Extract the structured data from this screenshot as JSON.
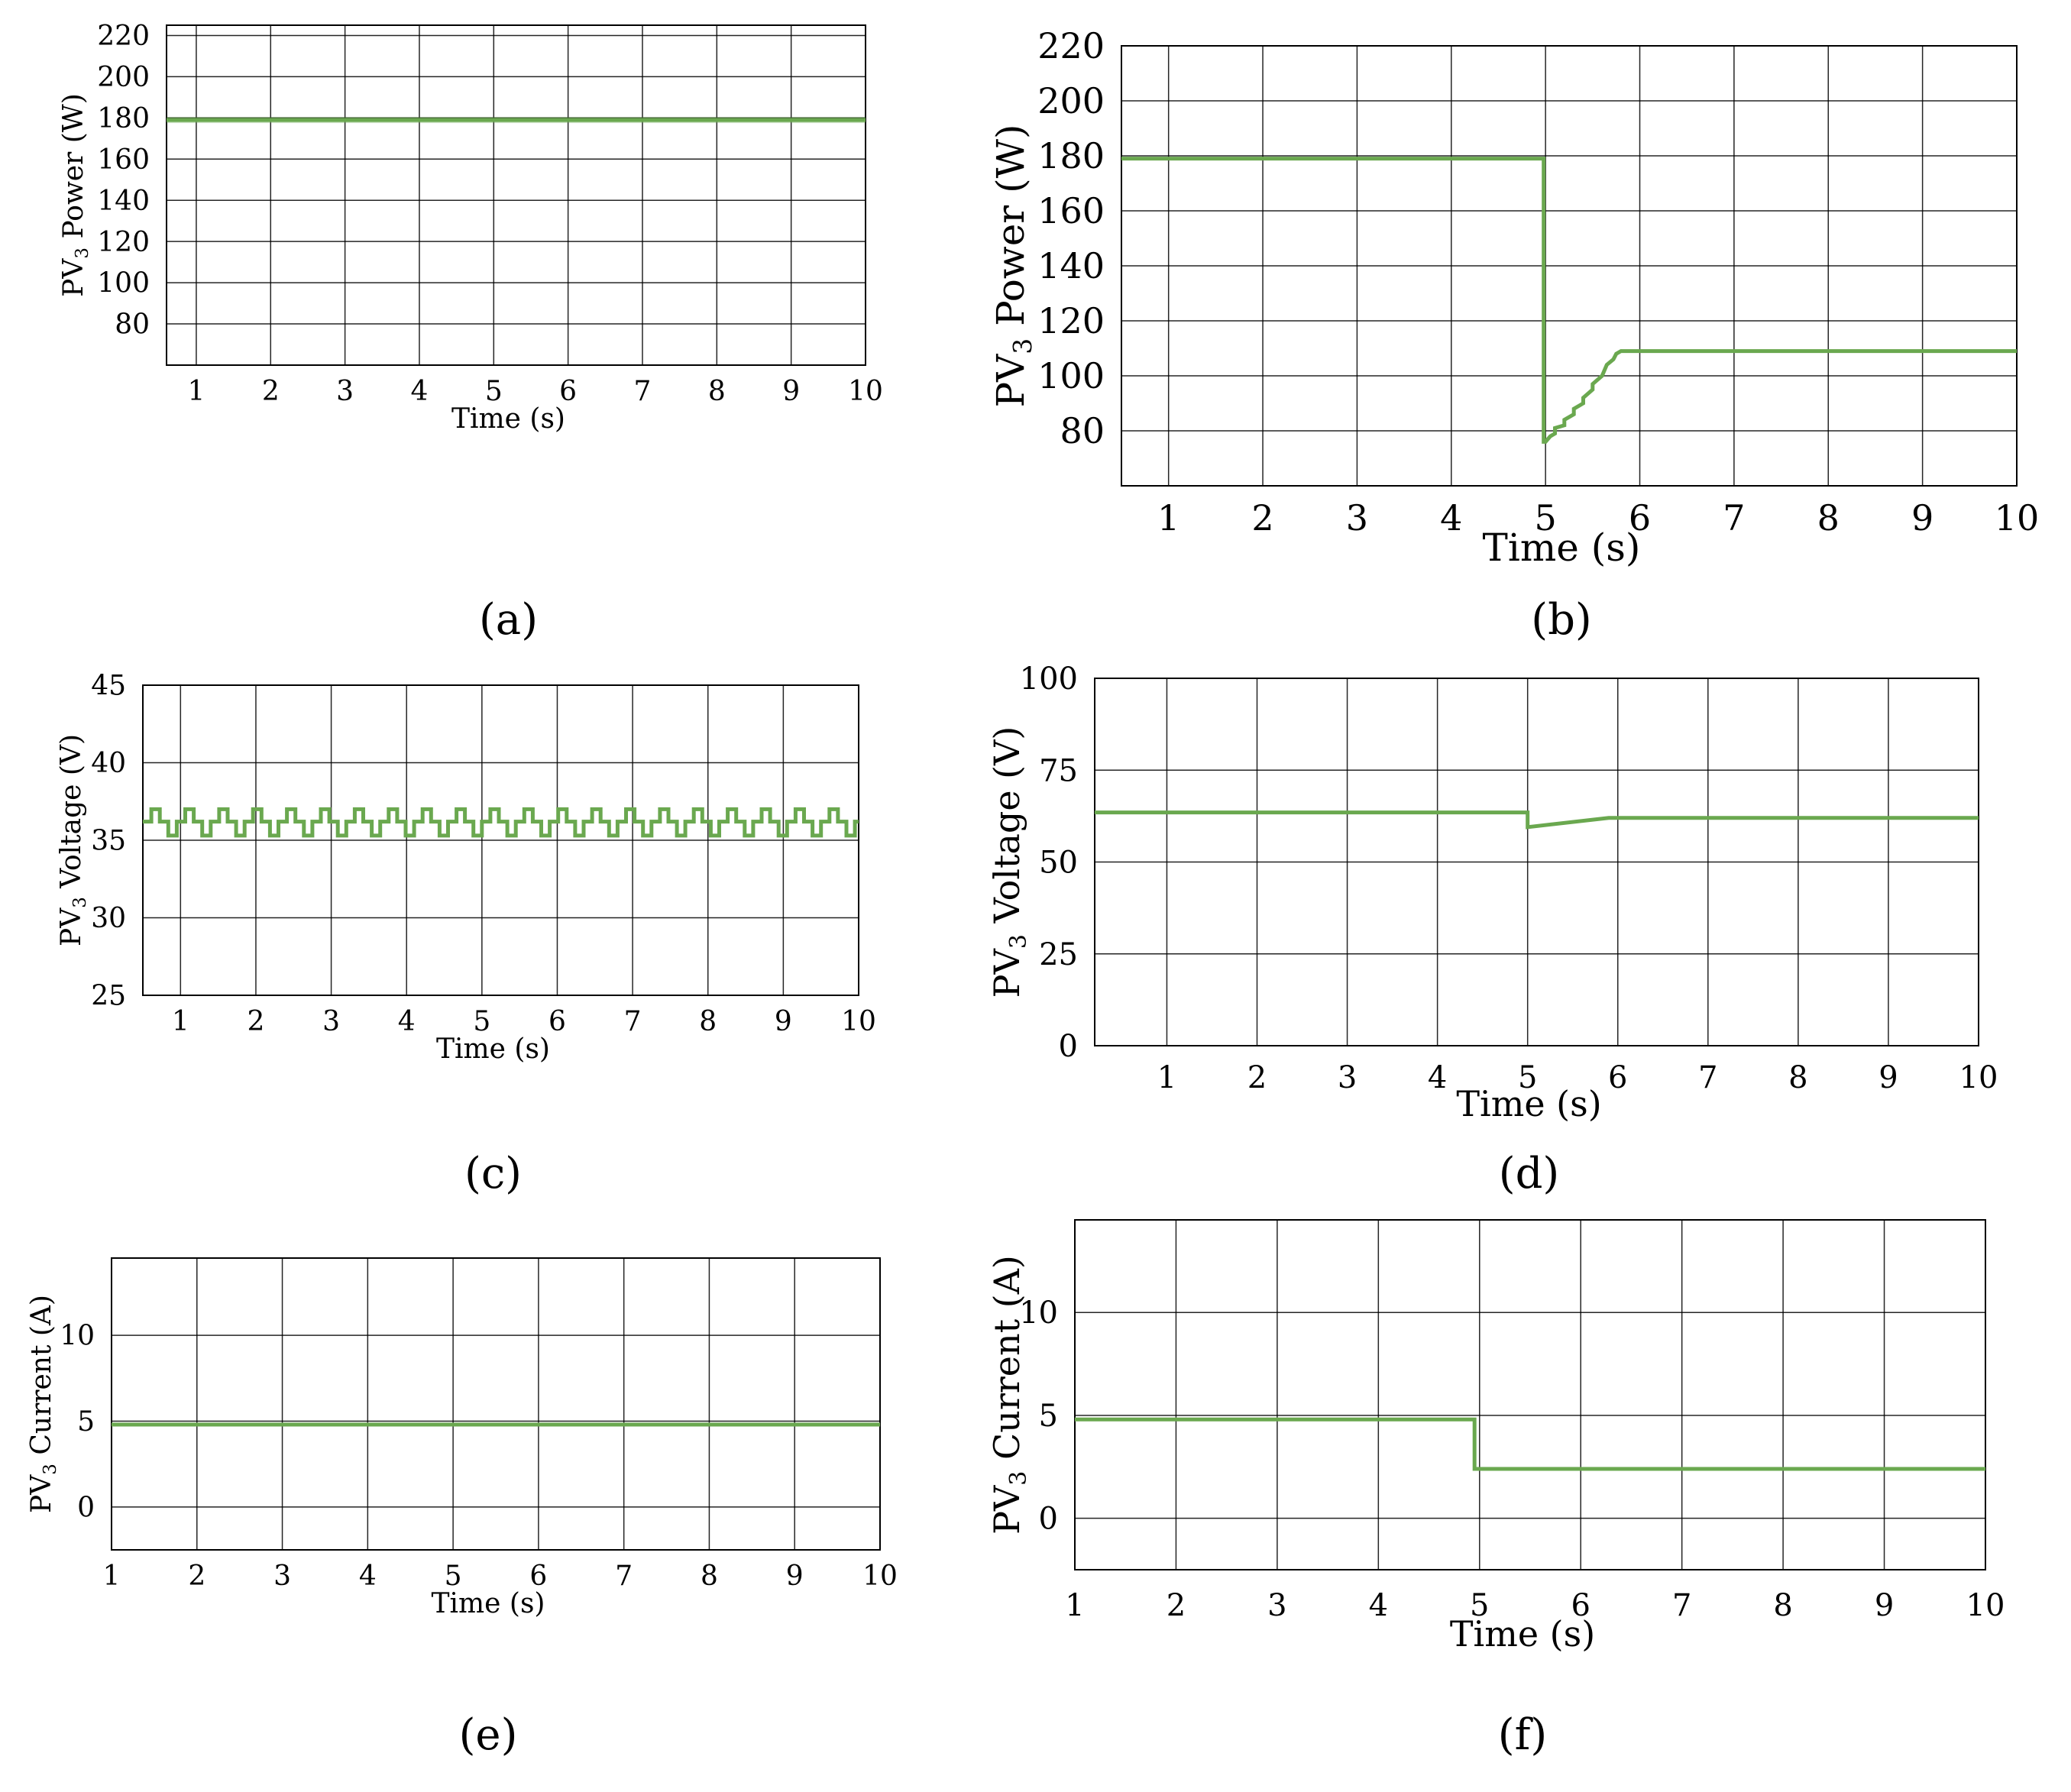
{
  "colors": {
    "series": "#6aa84f",
    "axis": "#000000",
    "grid": "#000000"
  },
  "chart_data": [
    {
      "type": "line",
      "panel_label": "(a)",
      "xlabel": "Time (s)",
      "ylabel": "PV3 Power (W)",
      "ylabel_main": "PV",
      "ylabel_sub": "3",
      "ylabel_rest": " Power (W)",
      "xlim": [
        0.6,
        10
      ],
      "ylim": [
        60,
        225
      ],
      "xticks": [
        1,
        2,
        3,
        4,
        5,
        6,
        7,
        8,
        9,
        10
      ],
      "yticks": [
        80,
        100,
        120,
        140,
        160,
        180,
        200,
        220
      ],
      "grid": true,
      "series": [
        {
          "x": [
            0.6,
            10
          ],
          "y": [
            179,
            179
          ],
          "band": [
            177.5,
            180.5
          ]
        }
      ]
    },
    {
      "type": "line",
      "panel_label": "(b)",
      "xlabel": "Time (s)",
      "ylabel": "PV3 Power (W)",
      "ylabel_main": "PV",
      "ylabel_sub": "3",
      "ylabel_rest": " Power (W)",
      "xlim": [
        0.5,
        10
      ],
      "ylim": [
        60,
        220
      ],
      "xticks": [
        1,
        2,
        3,
        4,
        5,
        6,
        7,
        8,
        9,
        10
      ],
      "yticks": [
        80,
        100,
        120,
        140,
        160,
        180,
        200,
        220
      ],
      "grid": true,
      "series": [
        {
          "x": [
            0.5,
            4.98,
            4.98,
            5.0,
            5.05,
            5.1,
            5.1,
            5.2,
            5.2,
            5.3,
            5.3,
            5.4,
            5.4,
            5.5,
            5.5,
            5.6,
            5.65,
            5.72,
            5.75,
            5.8,
            6.0,
            10
          ],
          "y": [
            179,
            179,
            76,
            76,
            78,
            79,
            81,
            82,
            84,
            86,
            88,
            90,
            92,
            95,
            97,
            100,
            104,
            106,
            108,
            109,
            109,
            109
          ]
        }
      ]
    },
    {
      "type": "line",
      "panel_label": "(c)",
      "xlabel": "Time (s)",
      "ylabel": "PV3 Voltage (V)",
      "ylabel_main": "PV",
      "ylabel_sub": "3",
      "ylabel_rest": " Voltage (V)",
      "xlim": [
        0.5,
        10
      ],
      "ylim": [
        25,
        45
      ],
      "xticks": [
        1,
        2,
        3,
        4,
        5,
        6,
        7,
        8,
        9,
        10
      ],
      "yticks": [
        25,
        30,
        35,
        40,
        45
      ],
      "grid": true,
      "series": [
        {
          "period": 0.45,
          "x_start": 0.5,
          "x_end": 10,
          "levels": [
            35.3,
            36.2,
            37.0
          ]
        }
      ]
    },
    {
      "type": "line",
      "panel_label": "(d)",
      "xlabel": "Time (s)",
      "ylabel": "PV3 Voltage (V)",
      "ylabel_main": "PV",
      "ylabel_sub": "3",
      "ylabel_rest": " Voltage (V)",
      "xlim": [
        0.2,
        10
      ],
      "ylim": [
        0,
        100
      ],
      "xticks": [
        1,
        2,
        3,
        4,
        5,
        6,
        7,
        8,
        9,
        10
      ],
      "yticks": [
        0,
        25,
        50,
        75,
        100
      ],
      "grid": true,
      "series": [
        {
          "x": [
            0.2,
            5.0,
            5.0,
            5.9,
            10
          ],
          "y": [
            63.5,
            63.5,
            59.5,
            62,
            62
          ]
        }
      ]
    },
    {
      "type": "line",
      "panel_label": "(e)",
      "xlabel": "Time (s)",
      "ylabel": "PV3 Current (A)",
      "ylabel_main": "PV",
      "ylabel_sub": "3",
      "ylabel_rest": "  Current (A)",
      "xlim": [
        1,
        10
      ],
      "ylim": [
        -2.5,
        14.5
      ],
      "xticks": [
        1,
        2,
        3,
        4,
        5,
        6,
        7,
        8,
        9,
        10
      ],
      "yticks": [
        0,
        5,
        10
      ],
      "grid": true,
      "series": [
        {
          "x": [
            1,
            10
          ],
          "y": [
            4.8,
            4.8
          ]
        }
      ]
    },
    {
      "type": "line",
      "panel_label": "(f)",
      "xlabel": "Time (s)",
      "ylabel": "PV3 Current (A)",
      "ylabel_main": "PV",
      "ylabel_sub": "3",
      "ylabel_rest": "  Current (A)",
      "xlim": [
        1,
        10
      ],
      "ylim": [
        -2.5,
        14.5
      ],
      "xticks": [
        1,
        2,
        3,
        4,
        5,
        6,
        7,
        8,
        9,
        10
      ],
      "yticks": [
        0,
        5,
        10
      ],
      "grid": true,
      "series": [
        {
          "x": [
            1,
            4.95,
            4.95,
            10
          ],
          "y": [
            4.8,
            4.8,
            2.4,
            2.4
          ]
        }
      ]
    }
  ]
}
